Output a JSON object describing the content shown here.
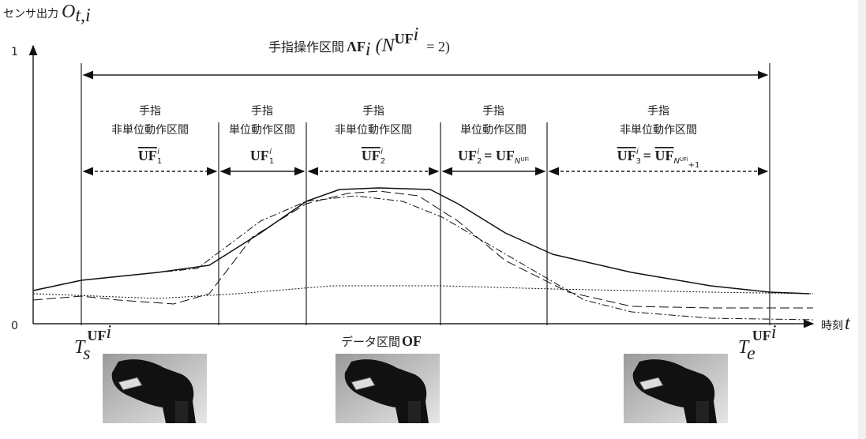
{
  "y_axis": {
    "label": "センサ出力",
    "symbol": "O",
    "symbol_sub": "t,i",
    "ticks": [
      "1",
      "0"
    ]
  },
  "x_axis": {
    "label": "時刻",
    "symbol": "t"
  },
  "operation_interval": {
    "label": "手指操作区間",
    "symbol": "ΛF",
    "symbol_sub": "i",
    "formula_open": "(N",
    "formula_sup": "UF",
    "formula_sup_sup": "i",
    "formula_close": "= 2)"
  },
  "segments": [
    {
      "lines": [
        "手指",
        "非単位動作区間"
      ],
      "symbol": "UF",
      "overline": true,
      "sub": "1",
      "sup": "i"
    },
    {
      "lines": [
        "手指",
        "単位動作区間"
      ],
      "symbol": "UF",
      "overline": false,
      "sub": "1",
      "sup": "i"
    },
    {
      "lines": [
        "手指",
        "非単位動作区間"
      ],
      "symbol": "UF",
      "overline": true,
      "sub": "2",
      "sup": "i"
    },
    {
      "lines": [
        "手指",
        "単位動作区間"
      ],
      "symbol": "UF",
      "overline": false,
      "sub": "2",
      "sup": "i",
      "eq": "= UF",
      "eq_sub": "N",
      "eq_sub_sup": "UFi"
    },
    {
      "lines": [
        "手指",
        "非単位動作区間"
      ],
      "symbol": "UF",
      "overline": true,
      "sub": "3",
      "sup": "i",
      "eq": "= ",
      "eq_symbol": "UF",
      "eq_sub": "N",
      "eq_sub_sup": "UFi",
      "eq_sub_tail": "+1"
    }
  ],
  "start_marker": {
    "symbol": "T",
    "sub": "s",
    "sup": "UF",
    "sup_sup": "i"
  },
  "end_marker": {
    "symbol": "T",
    "sub": "e",
    "sup": "UF",
    "sup_sup": "i"
  },
  "data_interval": {
    "label": "データ区間",
    "symbol": "OF"
  }
}
